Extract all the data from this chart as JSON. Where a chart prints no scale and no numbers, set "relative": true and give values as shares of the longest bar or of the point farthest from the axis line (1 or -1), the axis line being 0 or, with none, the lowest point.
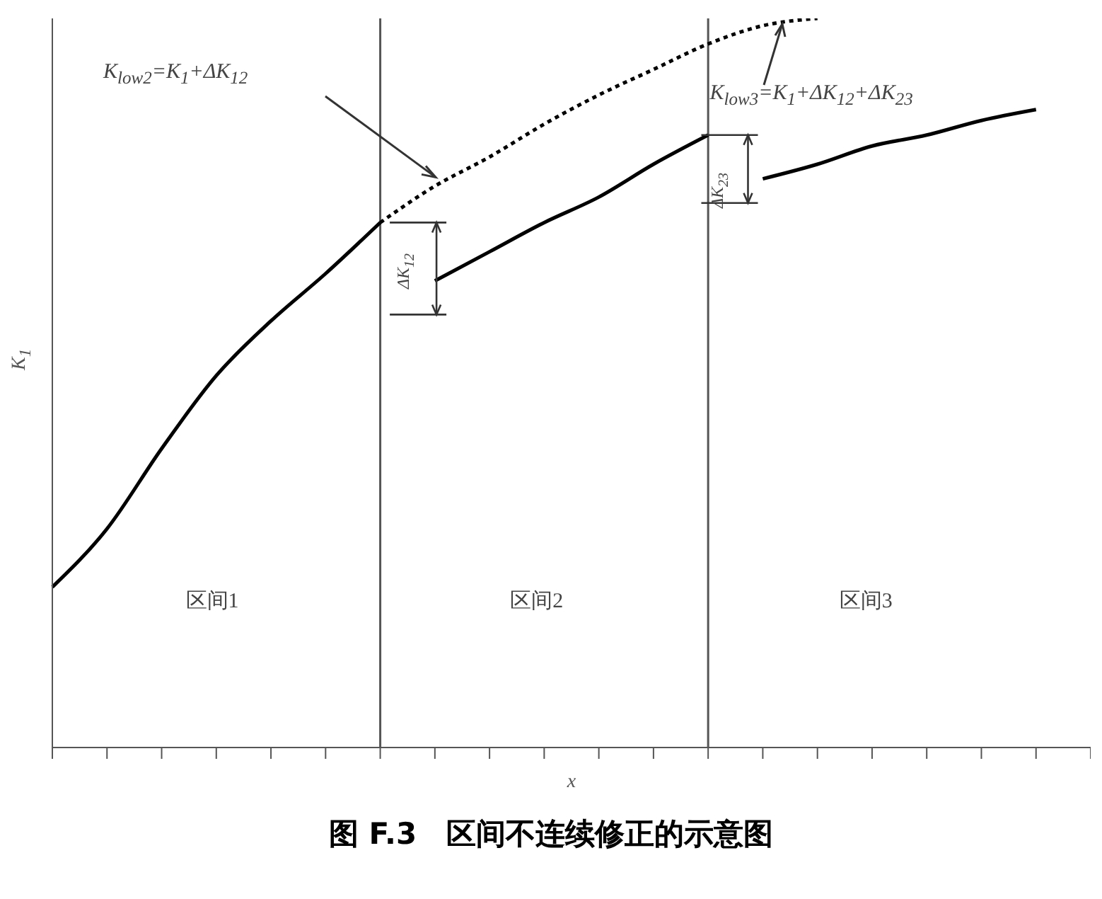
{
  "chart_data": {
    "type": "line",
    "title": "图 F.3　区间不连续修正的示意图",
    "xlabel": "x",
    "ylabel": "K$_{1}$",
    "relative": true,
    "categories": [
      null,
      null,
      null,
      null,
      null,
      null,
      null,
      null,
      null,
      null,
      null,
      null,
      null,
      null,
      null,
      null,
      null,
      null,
      null,
      null
    ],
    "series": [
      {
        "color": "#000000",
        "line_style": "solid",
        "values": [
          0.22,
          0.3,
          0.41,
          0.51,
          0.585,
          0.65,
          0.72,
          null,
          null,
          null,
          null,
          null,
          null,
          null,
          null,
          null,
          null,
          null,
          null,
          null
        ]
      },
      {
        "color": "#000000",
        "line_style": "dotted",
        "values": [
          null,
          null,
          null,
          null,
          null,
          null,
          0.72,
          0.77,
          0.81,
          0.855,
          0.895,
          0.93,
          0.965,
          0.99,
          1.0,
          null,
          null,
          null,
          null,
          null
        ]
      },
      {
        "color": "#000000",
        "line_style": "solid",
        "values": [
          null,
          null,
          null,
          null,
          null,
          null,
          null,
          0.64,
          0.68,
          0.72,
          0.755,
          0.8,
          0.84,
          null,
          null,
          null,
          null,
          null,
          null,
          null
        ]
      },
      {
        "color": "#000000",
        "line_style": "solid",
        "values": [
          null,
          null,
          null,
          null,
          null,
          null,
          null,
          null,
          null,
          null,
          null,
          null,
          null,
          0.78,
          0.8,
          0.825,
          0.84,
          0.86,
          0.875,
          null
        ]
      }
    ],
    "annotations": [
      "K$_{low2}$=K$_{1}$+ΔK$_{12}$",
      "K$_{low3}$=K$_{1}$+ΔK$_{12}$+ΔK$_{23}$",
      "ΔK$_{12}$",
      "ΔK$_{23}$",
      "区间1",
      "区间2",
      "区间3"
    ]
  }
}
